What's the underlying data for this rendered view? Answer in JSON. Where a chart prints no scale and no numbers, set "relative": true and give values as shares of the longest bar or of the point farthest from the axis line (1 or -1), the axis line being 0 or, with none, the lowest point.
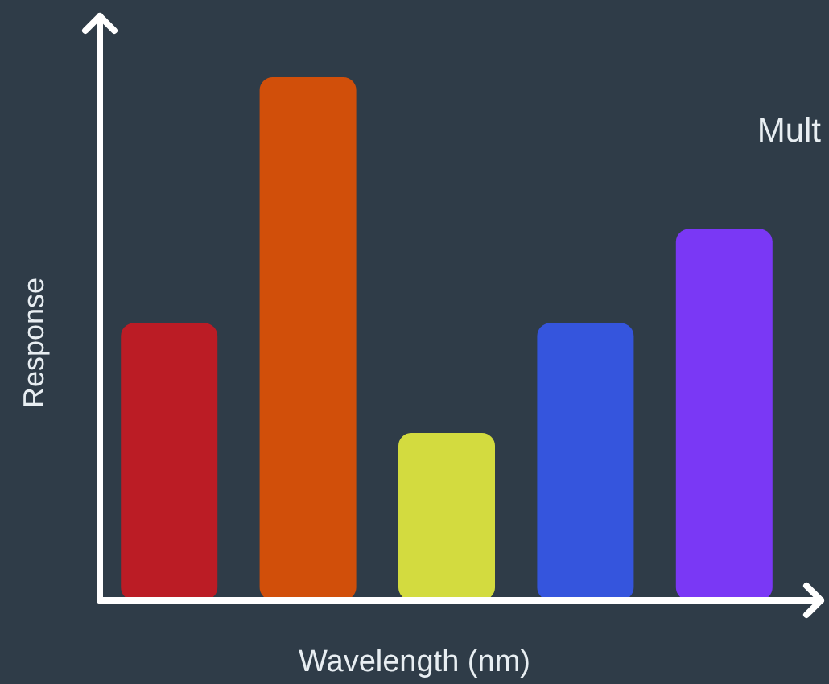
{
  "chart_data": {
    "type": "bar",
    "relative": true,
    "title": "Mult",
    "xlabel": "Wavelength (nm)",
    "ylabel": "Response",
    "categories": [
      null,
      null,
      null,
      null,
      null
    ],
    "values": [
      0.53,
      1,
      0.32,
      0.53,
      0.71
    ],
    "colors": [
      "#bb1c25",
      "#d14f0a",
      "#d3db3f",
      "#3555dd",
      "#7a38f5"
    ],
    "grid": false
  }
}
